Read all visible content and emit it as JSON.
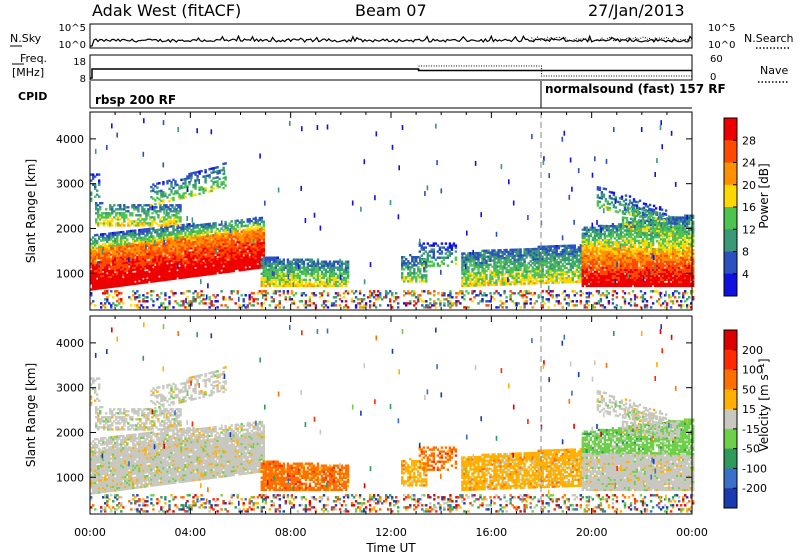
{
  "header": {
    "station": "Adak West (fitACF)",
    "beam": "Beam 07",
    "date": "27/Jan/2013"
  },
  "top_panels": {
    "nsky_label": "N.Sky",
    "nsky_ticks": [
      "10^5",
      "10^0"
    ],
    "nsearch_label": "N.Search",
    "nsearch_ticks": [
      "10^5",
      "10^0"
    ],
    "freq_label_1": "Freq.",
    "freq_label_2": "[MHz]",
    "freq_ticks": [
      "18",
      "8"
    ],
    "nave_label": "Nave",
    "nave_ticks": [
      "60",
      "0"
    ],
    "cpid_label": "CPID",
    "cpid_modes": [
      {
        "name": "rbsp 200 RF",
        "start_hour": 0
      },
      {
        "name": "normalsound (fast) 157 RF",
        "start_hour": 18
      }
    ]
  },
  "chart_data": [
    {
      "type": "heatmap",
      "title": "",
      "xlabel": "",
      "ylabel": "Slant Range [km]",
      "colorbar_label": "Power [dB]",
      "x_ticks": [
        "00:00",
        "04:00",
        "08:00",
        "12:00",
        "16:00",
        "20:00",
        "00:00"
      ],
      "y_ticks": [
        "1000",
        "2000",
        "3000",
        "4000"
      ],
      "ylim": [
        180,
        4600
      ],
      "xlim_hours": [
        0,
        24
      ],
      "colorbar_ticks": [
        "4",
        "8",
        "12",
        "16",
        "20",
        "24",
        "28"
      ],
      "colorbar_range": [
        0,
        32
      ],
      "colors": [
        "#1010e0",
        "#2c50c0",
        "#3a9a78",
        "#4cc450",
        "#ffd800",
        "#ff9000",
        "#ff4a00",
        "#ee0000"
      ]
    },
    {
      "type": "heatmap",
      "title": "",
      "xlabel": "Time UT",
      "ylabel": "Slant Range [km]",
      "colorbar_label": "Velocity [m s⁻¹]",
      "x_ticks": [
        "00:00",
        "04:00",
        "08:00",
        "12:00",
        "16:00",
        "20:00",
        "00:00"
      ],
      "y_ticks": [
        "1000",
        "2000",
        "3000",
        "4000"
      ],
      "ylim": [
        180,
        4600
      ],
      "xlim_hours": [
        0,
        24
      ],
      "colorbar_ticks": [
        "200",
        "100",
        "50",
        "15",
        "-15",
        "-50",
        "-100",
        "-200"
      ],
      "colors": [
        "#1a3ab0",
        "#3a70c8",
        "#2e9a5c",
        "#6ed04a",
        "#c8c8c0",
        "#ffb000",
        "#ff7000",
        "#ff2a00",
        "#dd0000"
      ]
    }
  ]
}
